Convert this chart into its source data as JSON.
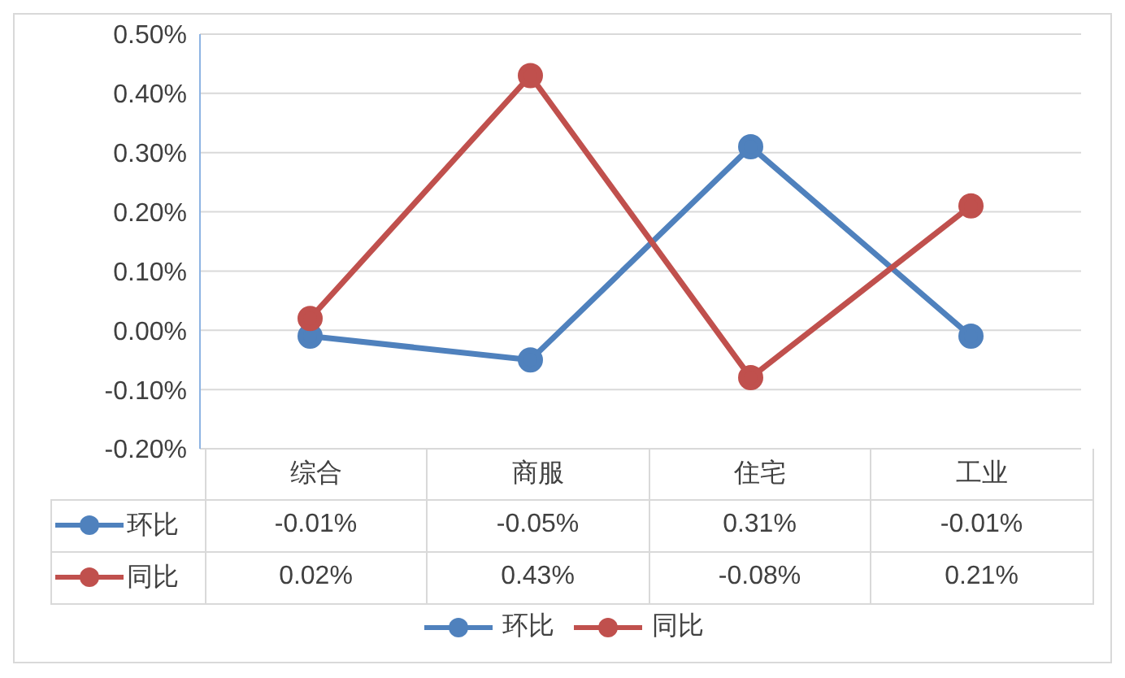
{
  "chart_data": {
    "type": "line",
    "categories": [
      "综合",
      "商服",
      "住宅",
      "工业"
    ],
    "series": [
      {
        "name": "环比",
        "color": "#4f81bd",
        "values": [
          -0.01,
          -0.05,
          0.31,
          -0.01
        ],
        "value_labels": [
          "-0.01%",
          "-0.05%",
          "0.31%",
          "-0.01%"
        ]
      },
      {
        "name": "同比",
        "color": "#c0504d",
        "values": [
          0.02,
          0.43,
          -0.08,
          0.21
        ],
        "value_labels": [
          "0.02%",
          "0.43%",
          "-0.08%",
          "0.21%"
        ]
      }
    ],
    "ylim": [
      -0.2,
      0.5
    ],
    "yticks": [
      {
        "value": -0.2,
        "label": "-0.20%"
      },
      {
        "value": -0.1,
        "label": "-0.10%"
      },
      {
        "value": 0,
        "label": "0.00%"
      },
      {
        "value": 0.1,
        "label": "0.10%"
      },
      {
        "value": 0.2,
        "label": "0.20%"
      },
      {
        "value": 0.3,
        "label": "0.30%"
      },
      {
        "value": 0.4,
        "label": "0.40%"
      },
      {
        "value": 0.5,
        "label": "0.50%"
      }
    ],
    "grid": "y",
    "legend": "bottom",
    "marker": "circle",
    "line_style": "solid"
  }
}
